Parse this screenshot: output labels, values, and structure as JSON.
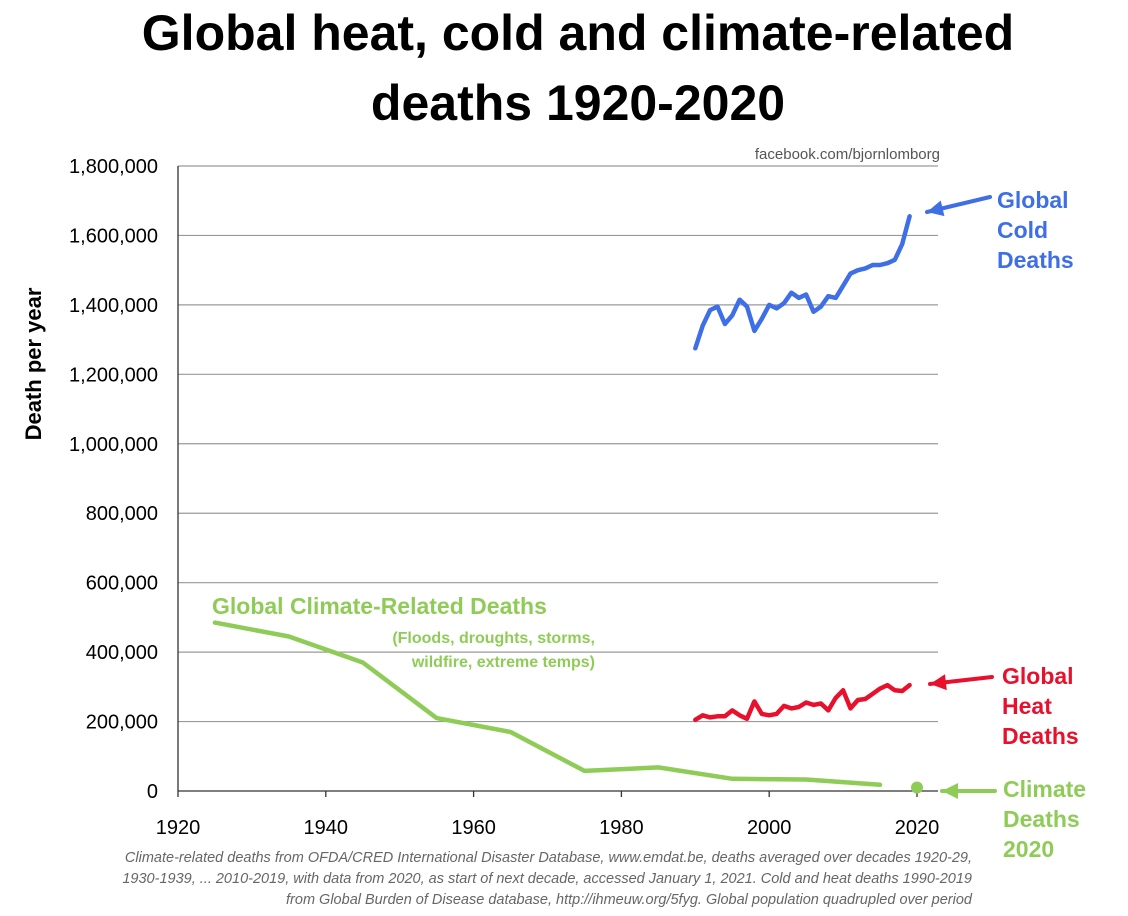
{
  "colors": {
    "cold": "#3f6fe6",
    "heat": "#e8112d",
    "climate": "#8fcc57",
    "grid": "#9a9a9a",
    "axis": "#333333"
  },
  "chart_data": {
    "type": "line",
    "title": [
      "Global heat, cold and climate-related",
      "deaths 1920-2020"
    ],
    "ylabel": "Death per year",
    "xlabel": "",
    "xlim": [
      1920,
      2022
    ],
    "ylim": [
      0,
      1800000
    ],
    "x_ticks": [
      "1920",
      "1940",
      "1960",
      "1980",
      "2000",
      "2020"
    ],
    "x_tick_values": [
      1920,
      1940,
      1960,
      1980,
      2000,
      2020
    ],
    "y_ticks": [
      "0",
      "200,000",
      "400,000",
      "600,000",
      "800,000",
      "1,000,000",
      "1,200,000",
      "1,400,000",
      "1,600,000",
      "1,800,000"
    ],
    "y_tick_values": [
      0,
      200000,
      400000,
      600000,
      800000,
      1000000,
      1200000,
      1400000,
      1600000,
      1800000
    ],
    "grid": true,
    "credit": "facebook.com/bjornlomborg",
    "series": [
      {
        "name": "Global Cold Deaths",
        "color_key": "cold",
        "x": [
          1990,
          1991,
          1992,
          1993,
          1994,
          1995,
          1996,
          1997,
          1998,
          1999,
          2000,
          2001,
          2002,
          2003,
          2004,
          2005,
          2006,
          2007,
          2008,
          2009,
          2010,
          2011,
          2012,
          2013,
          2014,
          2015,
          2016,
          2017,
          2018,
          2019
        ],
        "values": [
          1275000,
          1340000,
          1385000,
          1395000,
          1345000,
          1370000,
          1415000,
          1395000,
          1325000,
          1360000,
          1400000,
          1390000,
          1405000,
          1435000,
          1420000,
          1430000,
          1380000,
          1395000,
          1425000,
          1420000,
          1455000,
          1490000,
          1500000,
          1505000,
          1515000,
          1515000,
          1520000,
          1530000,
          1575000,
          1655000
        ]
      },
      {
        "name": "Global Heat Deaths",
        "color_key": "heat",
        "x": [
          1990,
          1991,
          1992,
          1993,
          1994,
          1995,
          1996,
          1997,
          1998,
          1999,
          2000,
          2001,
          2002,
          2003,
          2004,
          2005,
          2006,
          2007,
          2008,
          2009,
          2010,
          2011,
          2012,
          2013,
          2014,
          2015,
          2016,
          2017,
          2018,
          2019
        ],
        "values": [
          205000,
          218000,
          212000,
          215000,
          215000,
          232000,
          218000,
          208000,
          258000,
          222000,
          218000,
          222000,
          245000,
          238000,
          242000,
          255000,
          248000,
          252000,
          232000,
          268000,
          290000,
          238000,
          262000,
          265000,
          280000,
          295000,
          305000,
          290000,
          288000,
          305000
        ]
      },
      {
        "name": "Global Climate-Related Deaths",
        "color_key": "climate",
        "x": [
          1925,
          1935,
          1945,
          1955,
          1965,
          1975,
          1985,
          1995,
          2005,
          2015
        ],
        "values": [
          485000,
          445000,
          370000,
          210000,
          170000,
          58000,
          68000,
          35000,
          33000,
          18000
        ]
      },
      {
        "name": "Climate Deaths 2020",
        "color_key": "climate",
        "marker": "point",
        "x": [
          2020
        ],
        "values": [
          10000
        ]
      }
    ]
  },
  "annotations": {
    "cold": [
      "Global",
      "Cold",
      "Deaths"
    ],
    "heat": [
      "Global",
      "Heat",
      "Deaths"
    ],
    "climate2020": [
      "Climate",
      "Deaths",
      "2020"
    ],
    "climate_title": "Global Climate-Related Deaths",
    "climate_sub": [
      "(Floods, droughts, storms,",
      "wildfire, extreme temps)"
    ]
  },
  "footnote": [
    "Climate-related deaths from OFDA/CRED International Disaster Database, www.emdat.be, deaths averaged over decades 1920-29,",
    "1930-1939, ... 2010-2019, with data from 2020, as start of next decade, accessed January 1, 2021. Cold and heat deaths 1990-2019",
    "from Global Burden of Disease database, http://ihmeuw.org/5fyg. Global population quadrupled over period"
  ]
}
